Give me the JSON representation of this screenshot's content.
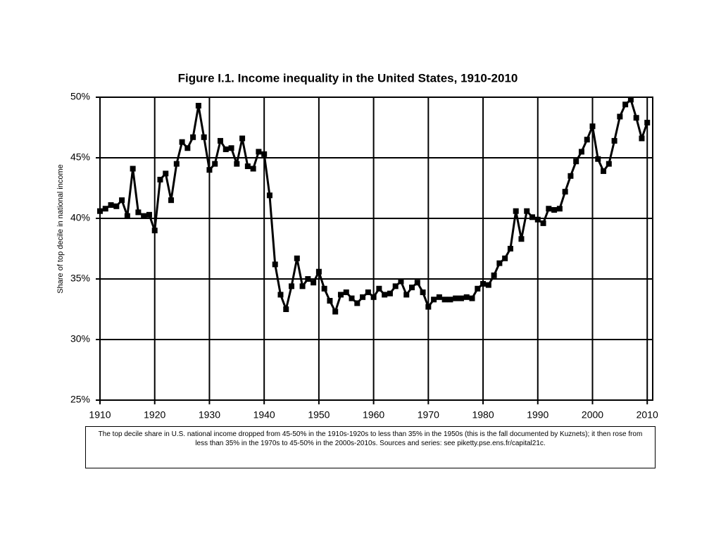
{
  "chart_data": {
    "type": "line",
    "title": "Figure I.1. Income inequality in the United States, 1910-2010",
    "y_label": "Share of top decile in national income",
    "caption": "The top decile share in U.S. national income dropped from 45-50% in the 1910s-1920s to less than 35% in the 1950s (this is the fall documented by Kuznets); it then rose from less than 35% in the 1970s to 45-50% in the 2000s-2010s. Sources and series: see piketty.pse.ens.fr/capital21c.",
    "x": [
      1910,
      1911,
      1912,
      1913,
      1914,
      1915,
      1916,
      1917,
      1918,
      1919,
      1920,
      1921,
      1922,
      1923,
      1924,
      1925,
      1926,
      1927,
      1928,
      1929,
      1930,
      1931,
      1932,
      1933,
      1934,
      1935,
      1936,
      1937,
      1938,
      1939,
      1940,
      1941,
      1942,
      1943,
      1944,
      1945,
      1946,
      1947,
      1948,
      1949,
      1950,
      1951,
      1952,
      1953,
      1954,
      1955,
      1956,
      1957,
      1958,
      1959,
      1960,
      1961,
      1962,
      1963,
      1964,
      1965,
      1966,
      1967,
      1968,
      1969,
      1970,
      1971,
      1972,
      1973,
      1974,
      1975,
      1976,
      1977,
      1978,
      1979,
      1980,
      1981,
      1982,
      1983,
      1984,
      1985,
      1986,
      1987,
      1988,
      1989,
      1990,
      1991,
      1992,
      1993,
      1994,
      1995,
      1996,
      1997,
      1998,
      1999,
      2000,
      2001,
      2002,
      2003,
      2004,
      2005,
      2006,
      2007,
      2008,
      2009,
      2010
    ],
    "series": [
      {
        "color": "#000000",
        "values": [
          40.6,
          40.8,
          41.1,
          41.0,
          41.5,
          40.2,
          44.1,
          40.5,
          40.2,
          40.3,
          39.0,
          43.2,
          43.7,
          41.5,
          44.5,
          46.3,
          45.8,
          46.7,
          49.3,
          46.7,
          44.0,
          44.5,
          46.4,
          45.7,
          45.8,
          44.5,
          46.6,
          44.3,
          44.1,
          45.5,
          45.3,
          41.9,
          36.2,
          33.7,
          32.5,
          34.4,
          36.7,
          34.4,
          35.0,
          34.7,
          35.6,
          34.2,
          33.2,
          32.3,
          33.7,
          33.9,
          33.4,
          33.0,
          33.5,
          33.9,
          33.5,
          34.2,
          33.7,
          33.8,
          34.4,
          34.8,
          33.7,
          34.3,
          34.7,
          33.9,
          32.7,
          33.3,
          33.5,
          33.3,
          33.3,
          33.4,
          33.4,
          33.5,
          33.4,
          34.2,
          34.6,
          34.5,
          35.3,
          36.3,
          36.7,
          37.5,
          40.6,
          38.3,
          40.6,
          40.1,
          39.9,
          39.6,
          40.8,
          40.7,
          40.8,
          42.2,
          43.5,
          44.7,
          45.5,
          46.5,
          47.6,
          44.9,
          43.9,
          44.5,
          46.4,
          48.4,
          49.4,
          49.8,
          48.3,
          46.6,
          47.9
        ]
      }
    ],
    "xlim": [
      1910,
      2011
    ],
    "xticks": [
      1910,
      1920,
      1930,
      1940,
      1950,
      1960,
      1970,
      1980,
      1990,
      2000,
      2010
    ],
    "ylim": [
      25,
      50
    ],
    "yticks": [
      {
        "value": 25,
        "label": "25%"
      },
      {
        "value": 30,
        "label": "30%"
      },
      {
        "value": 35,
        "label": "35%"
      },
      {
        "value": 40,
        "label": "40%"
      },
      {
        "value": 45,
        "label": "45%"
      },
      {
        "value": 50,
        "label": "50%"
      }
    ],
    "grid": true,
    "markers": true
  }
}
